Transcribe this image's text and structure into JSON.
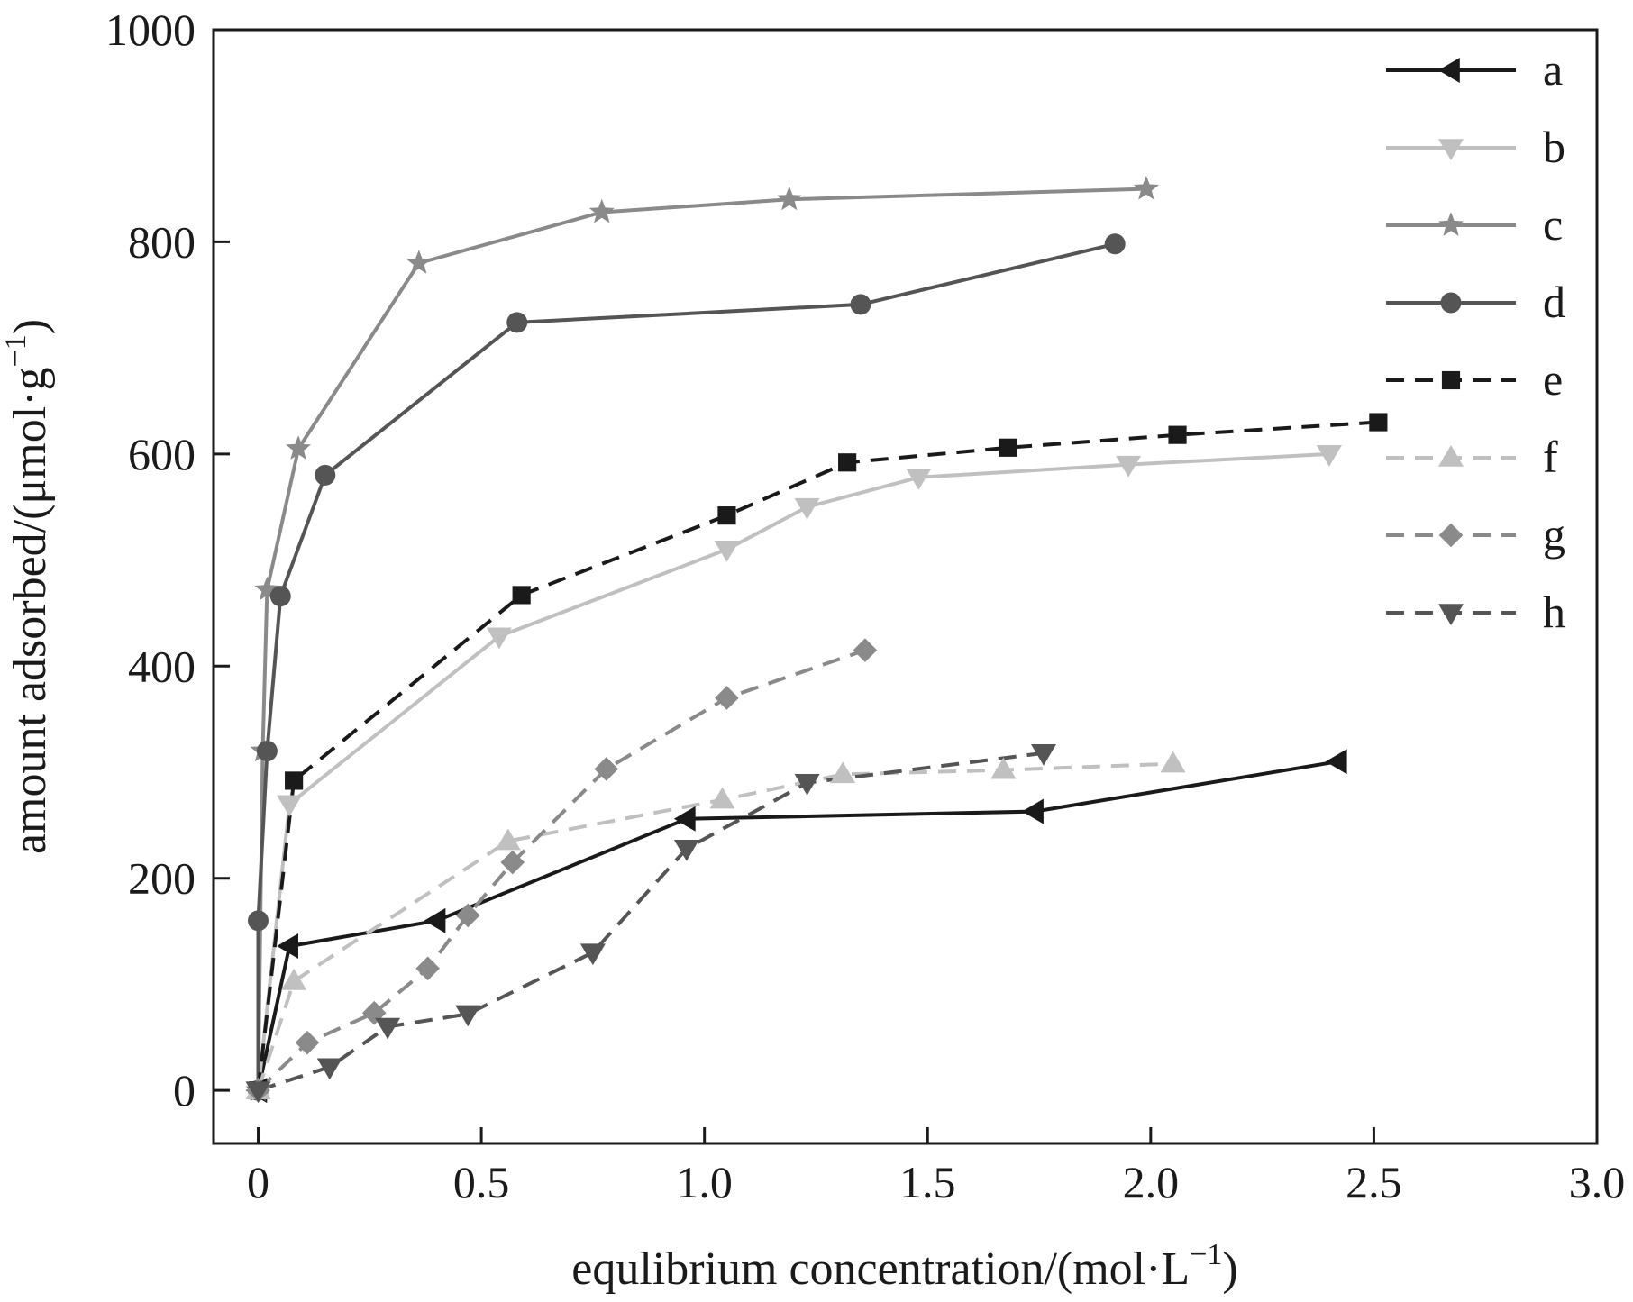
{
  "chart_data": {
    "type": "line",
    "title": "",
    "xlabel": "equlibrium concentration/(mol·L",
    "xlabel_sup": "−1",
    "xlabel_end": ")",
    "ylabel": "amount adsorbed/(μmol·g",
    "ylabel_sup": "−1",
    "ylabel_end": ")",
    "xlim": [
      -0.1,
      3.0
    ],
    "ylim": [
      -50,
      1000
    ],
    "xticks": [
      0,
      0.5,
      1.0,
      1.5,
      2.0,
      2.5,
      3.0
    ],
    "xtick_labels": [
      "0",
      "0.5",
      "1.0",
      "1.5",
      "2.0",
      "2.5",
      "3.0"
    ],
    "yticks": [
      0,
      200,
      400,
      600,
      800,
      1000
    ],
    "ytick_labels": [
      "0",
      "200",
      "400",
      "600",
      "800",
      "1000"
    ],
    "grid": false,
    "legend_position": "top-right",
    "series": [
      {
        "name": "a",
        "color": "#1a1a1a",
        "dash": "solid",
        "marker": "triangle-left",
        "x": [
          0,
          0.07,
          0.4,
          0.96,
          1.74,
          2.42
        ],
        "y": [
          0,
          136,
          160,
          256,
          263,
          310
        ]
      },
      {
        "name": "b",
        "color": "#c0c0c0",
        "dash": "solid",
        "marker": "triangle-down",
        "x": [
          0,
          0.07,
          0.54,
          1.05,
          1.23,
          1.48,
          1.95,
          2.4
        ],
        "y": [
          0,
          270,
          428,
          510,
          550,
          578,
          590,
          600
        ]
      },
      {
        "name": "c",
        "color": "#8a8a8a",
        "dash": "solid",
        "marker": "star",
        "x": [
          0,
          0.01,
          0.02,
          0.09,
          0.36,
          0.77,
          1.19,
          1.99
        ],
        "y": [
          0,
          320,
          472,
          605,
          780,
          828,
          840,
          850
        ]
      },
      {
        "name": "d",
        "color": "#555555",
        "dash": "solid",
        "marker": "circle",
        "x": [
          0,
          0.0,
          0.02,
          0.05,
          0.15,
          0.58,
          1.35,
          1.92
        ],
        "y": [
          0,
          160,
          320,
          466,
          580,
          724,
          741,
          798
        ]
      },
      {
        "name": "e",
        "color": "#1a1a1a",
        "dash": "dashed",
        "marker": "square",
        "x": [
          0,
          0.08,
          0.59,
          1.05,
          1.32,
          1.68,
          2.06,
          2.51
        ],
        "y": [
          0,
          292,
          467,
          542,
          592,
          606,
          618,
          630
        ]
      },
      {
        "name": "f",
        "color": "#c0c0c0",
        "dash": "dashed",
        "marker": "triangle-up",
        "x": [
          0,
          0.08,
          0.56,
          1.04,
          1.31,
          1.67,
          2.05
        ],
        "y": [
          0,
          103,
          235,
          274,
          298,
          302,
          308
        ]
      },
      {
        "name": "g",
        "color": "#8a8a8a",
        "dash": "dashed",
        "marker": "diamond",
        "x": [
          0,
          0.11,
          0.26,
          0.38,
          0.47,
          0.57,
          0.78,
          1.05,
          1.36
        ],
        "y": [
          0,
          45,
          73,
          115,
          165,
          215,
          303,
          370,
          415
        ]
      },
      {
        "name": "h",
        "color": "#555555",
        "dash": "dashed",
        "marker": "triangle-down",
        "x": [
          0,
          0.16,
          0.29,
          0.47,
          0.75,
          0.96,
          1.23,
          1.76
        ],
        "y": [
          0,
          22,
          60,
          72,
          130,
          228,
          290,
          318
        ]
      }
    ]
  }
}
